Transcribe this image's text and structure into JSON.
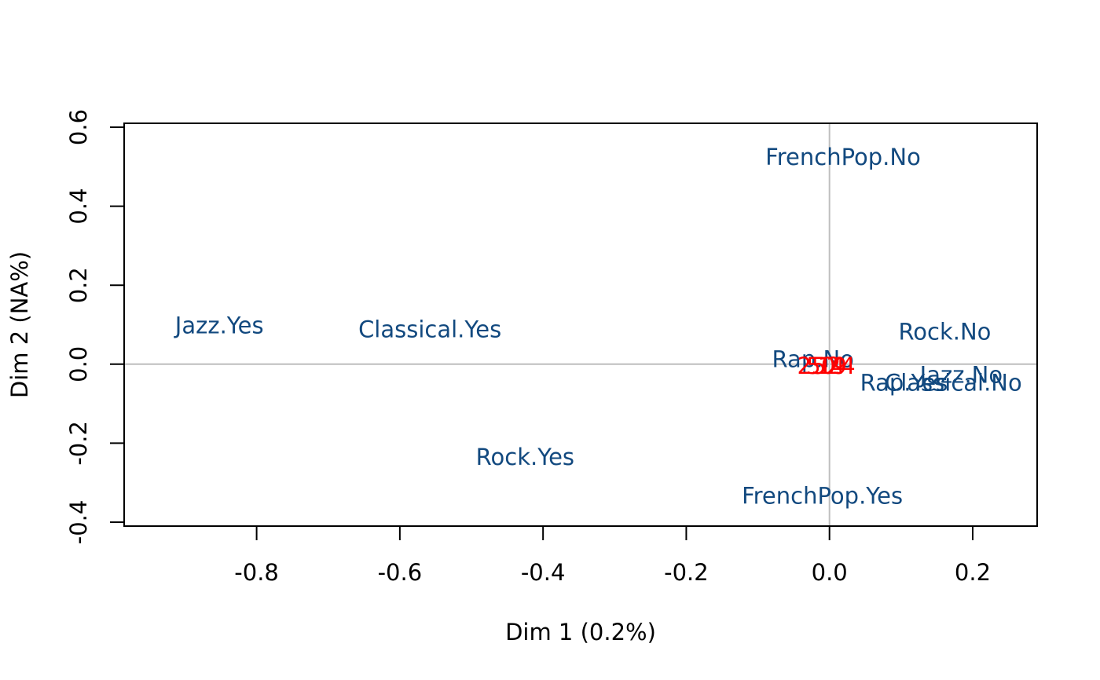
{
  "chart_data": {
    "type": "scatter",
    "title": "",
    "xlabel": "Dim 1 (0.2%)",
    "ylabel": "Dim 2 (NA%)",
    "xlim": [
      -0.985,
      0.29
    ],
    "ylim": [
      -0.41,
      0.61
    ],
    "x_ticks": [
      -0.8,
      -0.6,
      -0.4,
      -0.2,
      0.0,
      0.2
    ],
    "x_tick_labels": [
      "-0.8",
      "-0.6",
      "-0.4",
      "-0.2",
      "0.0",
      "0.2"
    ],
    "y_ticks": [
      -0.4,
      -0.2,
      0.0,
      0.2,
      0.4,
      0.6
    ],
    "y_tick_labels": [
      "-0.4",
      "-0.2",
      "0.0",
      "0.2",
      "0.4",
      "0.6"
    ],
    "reference_lines": {
      "x": 0,
      "y": 0,
      "color": "#bebebe"
    },
    "grid": false,
    "legend": "none",
    "series": [
      {
        "name": "",
        "color": "#12497f",
        "points": [
          {
            "label": "FrenchPop.No",
            "x": 0.019,
            "y": 0.525
          },
          {
            "label": "Jazz.Yes",
            "x": -0.852,
            "y": 0.098
          },
          {
            "label": "Classical.Yes",
            "x": -0.558,
            "y": 0.088
          },
          {
            "label": "Rock.No",
            "x": 0.161,
            "y": 0.082
          },
          {
            "label": "Rap.No",
            "x": -0.023,
            "y": 0.013
          },
          {
            "label": "Jazz.No",
            "x": 0.184,
            "y": -0.027
          },
          {
            "label": "Rap.Yes",
            "x": 0.104,
            "y": -0.047
          },
          {
            "label": "Classical.No",
            "x": 0.173,
            "y": -0.047
          },
          {
            "label": "Rock.Yes",
            "x": -0.425,
            "y": -0.235
          },
          {
            "label": "FrenchPop.Yes",
            "x": -0.01,
            "y": -0.333
          }
        ]
      },
      {
        "name": "",
        "color": "#ff0000",
        "points": [
          {
            "label": "25",
            "x": -0.025,
            "y": -0.004
          },
          {
            "label": "50",
            "x": -0.012,
            "y": -0.004
          },
          {
            "label": "19",
            "x": 0.004,
            "y": -0.004
          },
          {
            "label": "4",
            "x": 0.012,
            "y": -0.004
          },
          {
            "label": "24",
            "x": 0.016,
            "y": -0.004
          }
        ]
      }
    ]
  }
}
